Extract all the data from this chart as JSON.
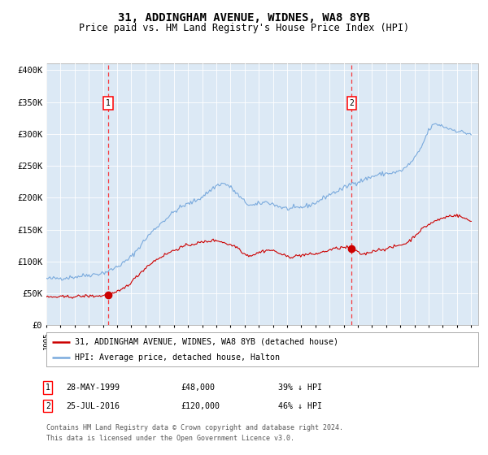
{
  "title": "31, ADDINGHAM AVENUE, WIDNES, WA8 8YB",
  "subtitle": "Price paid vs. HM Land Registry's House Price Index (HPI)",
  "ylim": [
    0,
    410000
  ],
  "yticks": [
    0,
    50000,
    100000,
    150000,
    200000,
    250000,
    300000,
    350000,
    400000
  ],
  "ytick_labels": [
    "£0",
    "£50K",
    "£100K",
    "£150K",
    "£200K",
    "£250K",
    "£300K",
    "£350K",
    "£400K"
  ],
  "xlim_start": 1995.0,
  "xlim_end": 2025.5,
  "hpi_color": "#7aaadd",
  "price_color": "#cc0000",
  "plot_bg": "#dce9f5",
  "grid_color": "#ffffff",
  "sale1_date": 1999.38,
  "sale1_price": 48000,
  "sale2_date": 2016.56,
  "sale2_price": 120000,
  "legend_property": "31, ADDINGHAM AVENUE, WIDNES, WA8 8YB (detached house)",
  "legend_hpi": "HPI: Average price, detached house, Halton",
  "footer_note": "Contains HM Land Registry data © Crown copyright and database right 2024.\nThis data is licensed under the Open Government Licence v3.0.",
  "title_fontsize": 10,
  "subtitle_fontsize": 8.5
}
